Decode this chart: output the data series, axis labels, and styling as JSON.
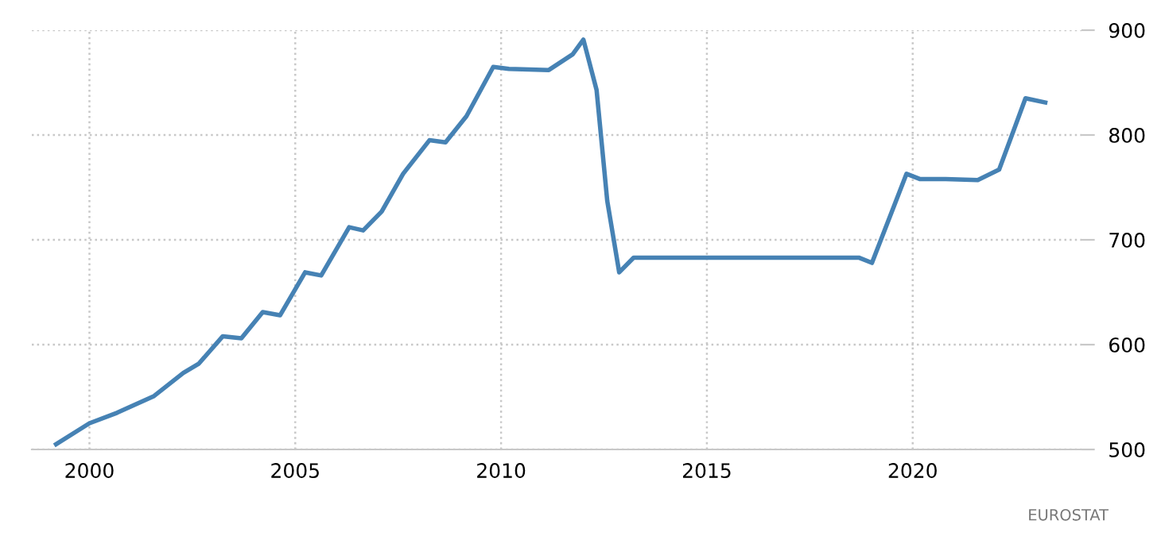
{
  "chart_data": {
    "type": "line",
    "color": "#4682b4",
    "x": [
      1999.19,
      2000.0,
      2000.67,
      2001.57,
      2002.28,
      2002.66,
      2003.24,
      2003.69,
      2004.21,
      2004.63,
      2005.24,
      2005.63,
      2006.31,
      2006.65,
      2007.1,
      2007.62,
      2008.26,
      2008.65,
      2009.16,
      2009.81,
      2010.19,
      2011.16,
      2011.74,
      2012.0,
      2012.32,
      2012.58,
      2012.87,
      2013.22,
      2014.0,
      2015.0,
      2016.0,
      2017.0,
      2018.0,
      2018.69,
      2019.01,
      2019.85,
      2020.17,
      2020.8,
      2021.58,
      2022.1,
      2022.74,
      2023.22
    ],
    "values": [
      505,
      525,
      535,
      551,
      573,
      582,
      608,
      606,
      631,
      628,
      669,
      666,
      712,
      709,
      727,
      763,
      795,
      793,
      818,
      865,
      863,
      862,
      877,
      891,
      843,
      737,
      669,
      683,
      683,
      683,
      683,
      683,
      683,
      683,
      678,
      763,
      758,
      758,
      757,
      767,
      835,
      831
    ],
    "xlim": [
      1998.6,
      2024.1
    ],
    "ylim": [
      500,
      900
    ],
    "xticks": [
      2000,
      2005,
      2010,
      2015,
      2020
    ],
    "yticks": [
      500,
      600,
      700,
      800,
      900
    ],
    "grid": true,
    "line_style": "solid",
    "marker": "none",
    "annotations": [
      "EUROSTAT"
    ]
  }
}
